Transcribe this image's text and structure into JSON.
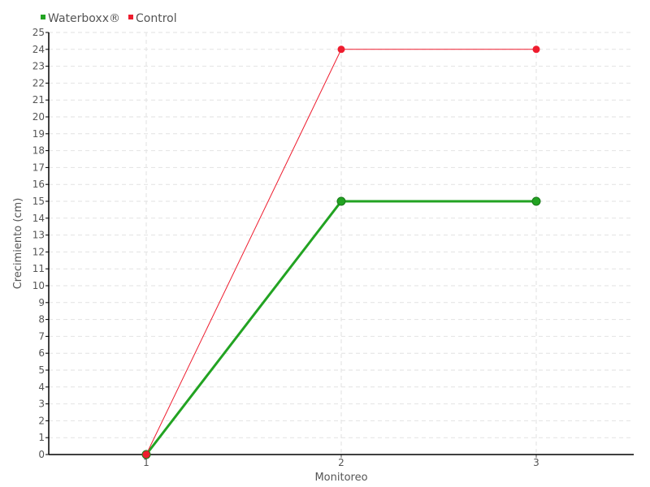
{
  "chart_data": {
    "type": "line",
    "xlabel": "Monitoreo",
    "ylabel": "Crecimiento (cm)",
    "categories": [
      "1",
      "2",
      "3"
    ],
    "x": [
      1,
      2,
      3
    ],
    "xlim": [
      0.5,
      3.5
    ],
    "ylim": [
      0,
      25
    ],
    "y_ticks": [
      0,
      1,
      2,
      3,
      4,
      5,
      6,
      7,
      8,
      9,
      10,
      11,
      12,
      13,
      14,
      15,
      16,
      17,
      18,
      19,
      20,
      21,
      22,
      23,
      24,
      25
    ],
    "grid": true,
    "legend_position": "top-left",
    "series": [
      {
        "name": "Waterboxx®",
        "values": [
          0,
          15,
          15
        ],
        "color": "#22a322"
      },
      {
        "name": "Control",
        "values": [
          0,
          24,
          24
        ],
        "color": "#ee1c2e"
      }
    ]
  }
}
